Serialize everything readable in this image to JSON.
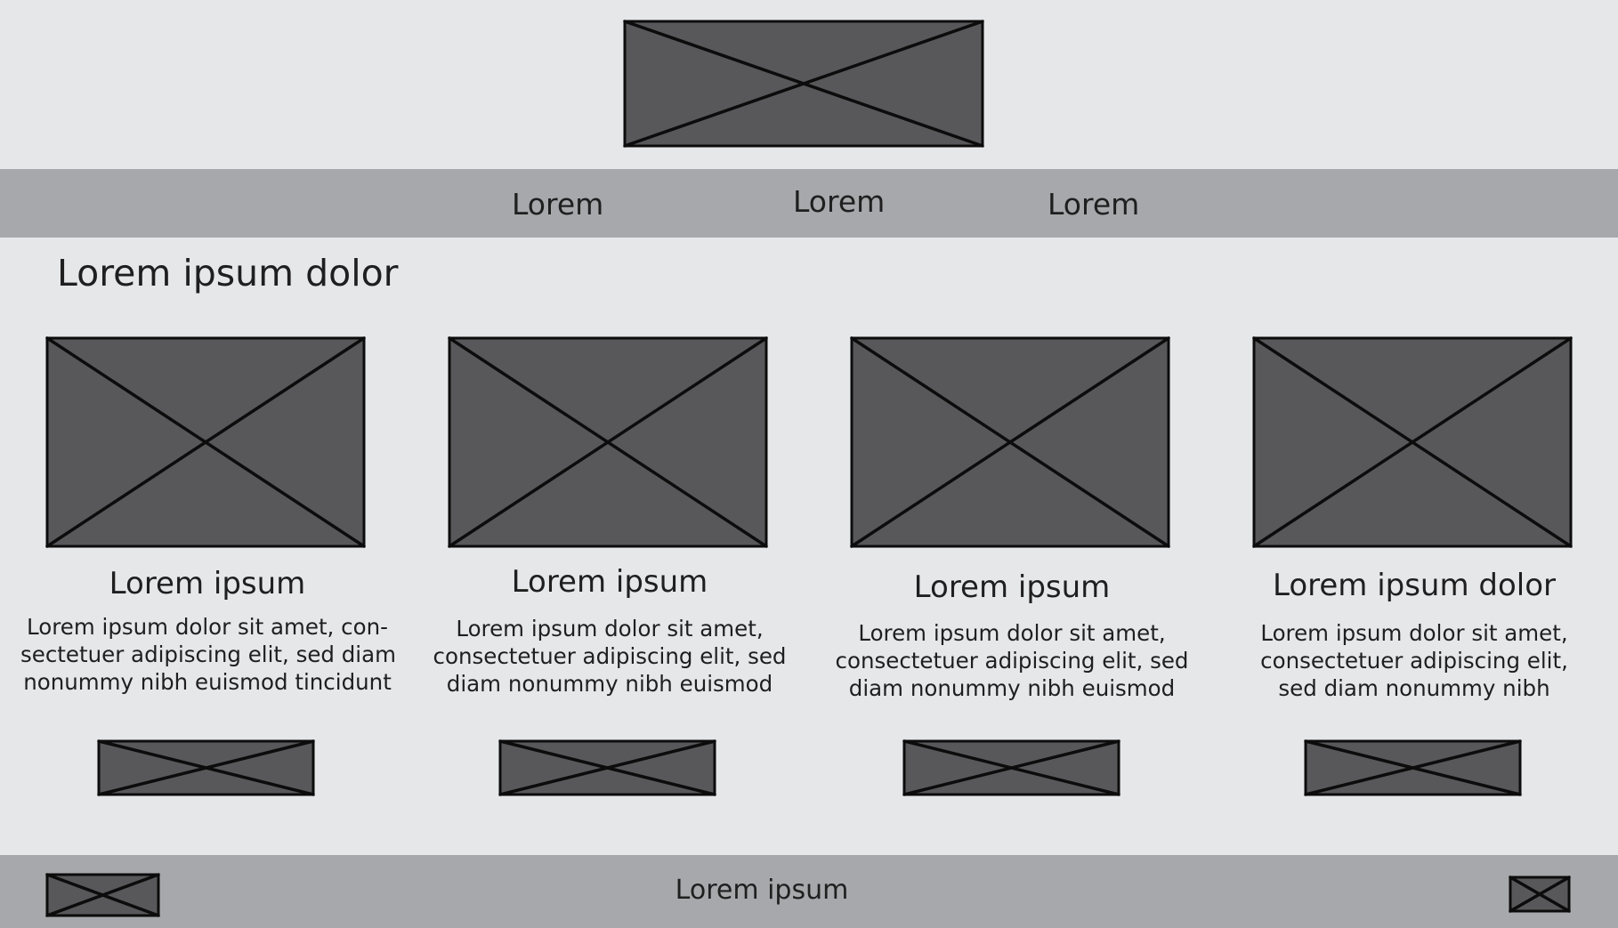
{
  "header": {
    "logo_icon": "image-placeholder-icon"
  },
  "nav": {
    "items": [
      {
        "label": "Lorem"
      },
      {
        "label": "Lorem"
      },
      {
        "label": "Lorem"
      }
    ]
  },
  "main": {
    "title": "Lorem ipsum dolor",
    "cards": [
      {
        "title": "Lorem ipsum",
        "desc_lines": [
          "Lorem ipsum dolor sit amet, con-",
          "sectetuer adipiscing elit, sed diam",
          "nonummy nibh euismod tincidunt"
        ]
      },
      {
        "title": "Lorem ipsum",
        "desc_lines": [
          "Lorem ipsum dolor sit amet,",
          "consectetuer adipiscing elit, sed",
          "diam nonummy nibh euismod"
        ]
      },
      {
        "title": "Lorem ipsum",
        "desc_lines": [
          "Lorem ipsum dolor sit amet,",
          "consectetuer adipiscing elit, sed",
          "diam nonummy nibh euismod"
        ]
      },
      {
        "title": "Lorem ipsum dolor",
        "desc_lines": [
          "Lorem ipsum dolor sit amet,",
          "consectetuer adipiscing elit,",
          "sed diam nonummy nibh"
        ]
      }
    ]
  },
  "footer": {
    "text": "Lorem ipsum"
  },
  "colors": {
    "background": "#e6e7e9",
    "bar": "#a7a8ab",
    "placeholder": "#58585a",
    "text": "#1f1f20"
  }
}
